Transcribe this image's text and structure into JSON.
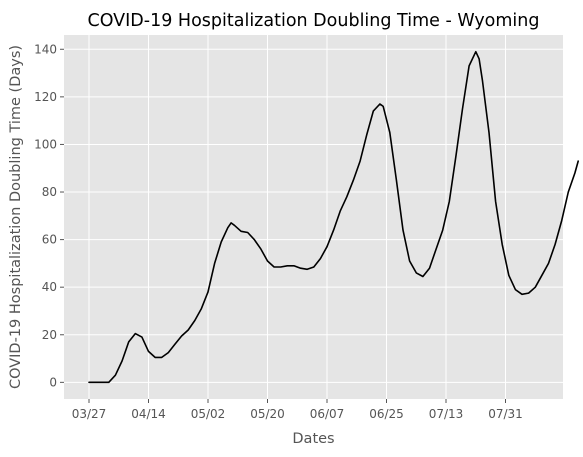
{
  "chart_data": {
    "type": "line",
    "title": "COVID-19 Hospitalization Doubling Time - Wyoming",
    "xlabel": "Dates",
    "ylabel": "COVID-19 Hospitalization Doubling Time (Days)",
    "x_tick_labels": [
      "03/27",
      "04/14",
      "05/02",
      "05/20",
      "06/07",
      "06/25",
      "07/13",
      "07/31"
    ],
    "y_ticks": [
      0,
      20,
      40,
      60,
      80,
      100,
      120,
      140
    ],
    "ylim": [
      -7,
      146
    ],
    "grid": true,
    "series": [
      {
        "color": "#000000",
        "points": [
          [
            "03/27",
            0
          ],
          [
            "03/29",
            0
          ],
          [
            "03/31",
            0
          ],
          [
            "04/02",
            0
          ],
          [
            "04/04",
            3
          ],
          [
            "04/06",
            9
          ],
          [
            "04/08",
            17
          ],
          [
            "04/10",
            20.5
          ],
          [
            "04/12",
            19
          ],
          [
            "04/14",
            13
          ],
          [
            "04/16",
            10.5
          ],
          [
            "04/18",
            10.5
          ],
          [
            "04/20",
            12.5
          ],
          [
            "04/22",
            16
          ],
          [
            "04/24",
            19.5
          ],
          [
            "04/26",
            22
          ],
          [
            "04/28",
            26
          ],
          [
            "04/30",
            31
          ],
          [
            "05/02",
            38
          ],
          [
            "05/04",
            50
          ],
          [
            "05/06",
            59
          ],
          [
            "05/08",
            65
          ],
          [
            "05/09",
            67
          ],
          [
            "05/10",
            66
          ],
          [
            "05/12",
            63.5
          ],
          [
            "05/14",
            63
          ],
          [
            "05/16",
            60
          ],
          [
            "05/18",
            56
          ],
          [
            "05/20",
            51
          ],
          [
            "05/22",
            48.5
          ],
          [
            "05/24",
            48.5
          ],
          [
            "05/26",
            49
          ],
          [
            "05/28",
            49
          ],
          [
            "05/30",
            48
          ],
          [
            "06/01",
            47.5
          ],
          [
            "06/03",
            48.5
          ],
          [
            "06/05",
            52
          ],
          [
            "06/07",
            57
          ],
          [
            "06/09",
            64
          ],
          [
            "06/11",
            72
          ],
          [
            "06/13",
            78
          ],
          [
            "06/15",
            85
          ],
          [
            "06/17",
            93
          ],
          [
            "06/19",
            104
          ],
          [
            "06/21",
            114
          ],
          [
            "06/23",
            117
          ],
          [
            "06/24",
            116
          ],
          [
            "06/26",
            105
          ],
          [
            "06/28",
            85
          ],
          [
            "06/30",
            64
          ],
          [
            "07/02",
            51
          ],
          [
            "07/04",
            46
          ],
          [
            "07/06",
            44.5
          ],
          [
            "07/08",
            48
          ],
          [
            "07/10",
            56
          ],
          [
            "07/12",
            64
          ],
          [
            "07/14",
            76
          ],
          [
            "07/16",
            95
          ],
          [
            "07/18",
            115
          ],
          [
            "07/20",
            133
          ],
          [
            "07/22",
            139
          ],
          [
            "07/23",
            136
          ],
          [
            "07/24",
            127
          ],
          [
            "07/26",
            105
          ],
          [
            "07/28",
            76
          ],
          [
            "07/30",
            58
          ],
          [
            "08/01",
            45
          ],
          [
            "08/03",
            39
          ],
          [
            "08/05",
            37
          ],
          [
            "08/07",
            37.5
          ],
          [
            "08/09",
            40
          ],
          [
            "08/11",
            45
          ],
          [
            "08/13",
            50
          ],
          [
            "08/15",
            58
          ],
          [
            "08/17",
            68
          ],
          [
            "08/19",
            80
          ],
          [
            "08/21",
            88
          ],
          [
            "08/22",
            93
          ]
        ]
      }
    ]
  }
}
